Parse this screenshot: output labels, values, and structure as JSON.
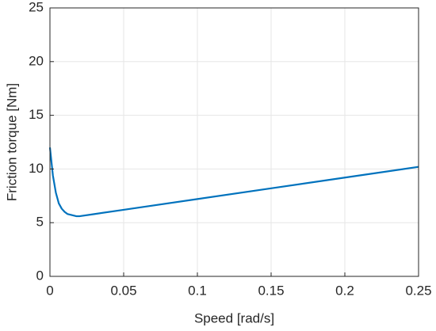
{
  "chart_data": {
    "type": "line",
    "xlabel": "Speed [rad/s]",
    "ylabel": "Friction torque [Nm]",
    "x": [
      0,
      0.002,
      0.004,
      0.006,
      0.008,
      0.01,
      0.012,
      0.015,
      0.018,
      0.02,
      0.03,
      0.05,
      0.1,
      0.15,
      0.2,
      0.25
    ],
    "values": [
      12.0,
      9.4,
      7.8,
      6.8,
      6.3,
      6.0,
      5.8,
      5.7,
      5.6,
      5.6,
      5.8,
      6.2,
      7.2,
      8.2,
      9.2,
      10.2
    ],
    "color": "#0072bd",
    "xlim": [
      0,
      0.25
    ],
    "xticks": [
      0,
      0.05,
      0.1,
      0.15,
      0.2,
      0.25
    ],
    "ylim": [
      0,
      25
    ],
    "yticks": [
      0,
      5,
      10,
      15,
      20,
      25
    ],
    "grid": true
  }
}
